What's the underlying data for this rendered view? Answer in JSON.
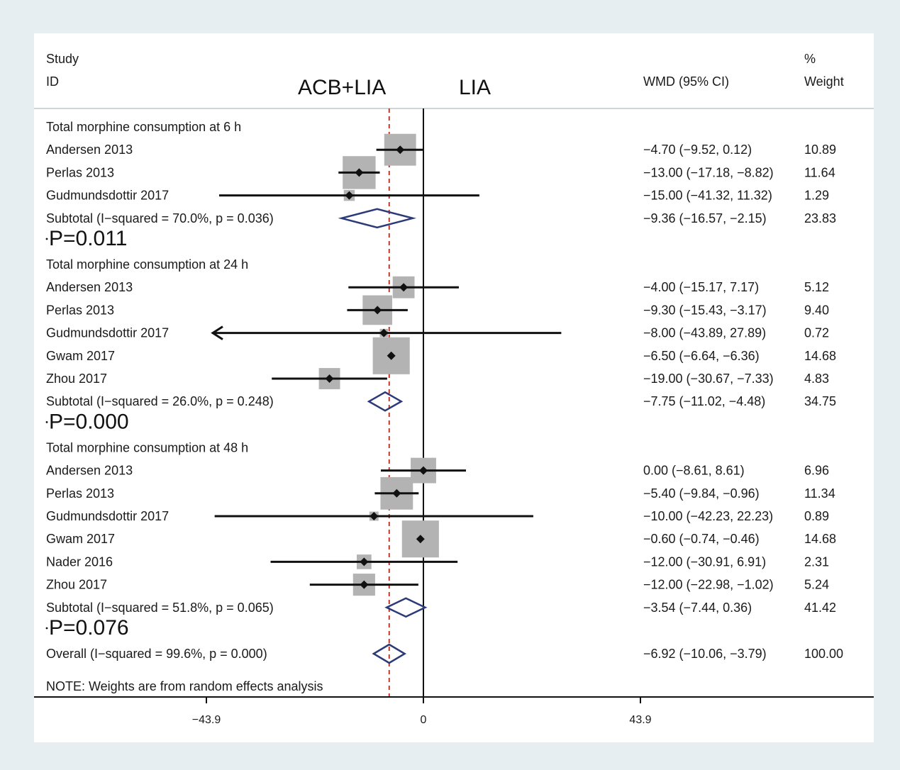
{
  "header": {
    "study_line1": "Study",
    "study_line2": "ID",
    "left_group": "ACB+LIA",
    "right_group": "LIA",
    "effect_label": "WMD (95% CI)",
    "weight_line1": "%",
    "weight_line2": "Weight"
  },
  "p_values": [
    "P=0.011",
    "P=0.000",
    "P=0.076"
  ],
  "note": "NOTE: Weights are from random effects analysis",
  "colors": {
    "background": "#e7eef2",
    "panel": "#ffffff",
    "box": "#b3b3b3",
    "diamond": "#2b3a78",
    "ref_line": "#c0392b",
    "line": "#111111"
  },
  "chart_data": {
    "type": "forest",
    "x_axis": {
      "ticks": [
        -43.9,
        0,
        43.9
      ],
      "tick_labels": [
        "−43.9",
        "0",
        "43.9"
      ],
      "null_value": 0,
      "overall_line": -6.92
    },
    "rows": [
      {
        "kind": "group",
        "label": "Total morphine consumption at 6 h"
      },
      {
        "kind": "study",
        "label": "Andersen 2013",
        "est": -4.7,
        "lo": -9.52,
        "hi": 0.12,
        "ci_text": "−4.70 (−9.52, 0.12)",
        "weight": "10.89"
      },
      {
        "kind": "study",
        "label": "Perlas 2013",
        "est": -13.0,
        "lo": -17.18,
        "hi": -8.82,
        "ci_text": "−13.00 (−17.18, −8.82)",
        "weight": "11.64"
      },
      {
        "kind": "study",
        "label": "Gudmundsdottir 2017",
        "est": -15.0,
        "lo": -41.32,
        "hi": 11.32,
        "ci_text": "−15.00 (−41.32, 11.32)",
        "weight": "1.29"
      },
      {
        "kind": "subtotal",
        "label": "Subtotal  (I−squared = 70.0%, p = 0.036)",
        "est": -9.36,
        "lo": -16.57,
        "hi": -2.15,
        "ci_text": "−9.36 (−16.57, −2.15)",
        "weight": "23.83"
      },
      {
        "kind": "pvalue",
        "index": 0
      },
      {
        "kind": "group",
        "label": "Total morphine consumption at 24 h"
      },
      {
        "kind": "study",
        "label": "Andersen 2013",
        "est": -4.0,
        "lo": -15.17,
        "hi": 7.17,
        "ci_text": "−4.00 (−15.17, 7.17)",
        "weight": "5.12"
      },
      {
        "kind": "study",
        "label": "Perlas 2013",
        "est": -9.3,
        "lo": -15.43,
        "hi": -3.17,
        "ci_text": "−9.30 (−15.43, −3.17)",
        "weight": "9.40"
      },
      {
        "kind": "study",
        "label": "Gudmundsdottir 2017",
        "est": -8.0,
        "lo": -43.89,
        "hi": 27.89,
        "ci_text": "−8.00 (−43.89, 27.89)",
        "weight": "0.72",
        "arrow_left": true
      },
      {
        "kind": "study",
        "label": "Gwam 2017",
        "est": -6.5,
        "lo": -6.64,
        "hi": -6.36,
        "ci_text": "−6.50 (−6.64, −6.36)",
        "weight": "14.68"
      },
      {
        "kind": "study",
        "label": "Zhou 2017",
        "est": -19.0,
        "lo": -30.67,
        "hi": -7.33,
        "ci_text": "−19.00 (−30.67, −7.33)",
        "weight": "4.83"
      },
      {
        "kind": "subtotal",
        "label": "Subtotal  (I−squared = 26.0%, p = 0.248)",
        "est": -7.75,
        "lo": -11.02,
        "hi": -4.48,
        "ci_text": "−7.75 (−11.02, −4.48)",
        "weight": "34.75"
      },
      {
        "kind": "pvalue",
        "index": 1
      },
      {
        "kind": "group",
        "label": "Total morphine consumption at 48 h"
      },
      {
        "kind": "study",
        "label": "Andersen 2013",
        "est": 0.0,
        "lo": -8.61,
        "hi": 8.61,
        "ci_text": "0.00 (−8.61, 8.61)",
        "weight": "6.96"
      },
      {
        "kind": "study",
        "label": "Perlas 2013",
        "est": -5.4,
        "lo": -9.84,
        "hi": -0.96,
        "ci_text": "−5.40 (−9.84, −0.96)",
        "weight": "11.34"
      },
      {
        "kind": "study",
        "label": "Gudmundsdottir 2017",
        "est": -10.0,
        "lo": -42.23,
        "hi": 22.23,
        "ci_text": "−10.00 (−42.23, 22.23)",
        "weight": "0.89"
      },
      {
        "kind": "study",
        "label": "Gwam 2017",
        "est": -0.6,
        "lo": -0.74,
        "hi": -0.46,
        "ci_text": "−0.60 (−0.74, −0.46)",
        "weight": "14.68"
      },
      {
        "kind": "study",
        "label": "Nader 2016",
        "est": -12.0,
        "lo": -30.91,
        "hi": 6.91,
        "ci_text": "−12.00 (−30.91, 6.91)",
        "weight": "2.31"
      },
      {
        "kind": "study",
        "label": "Zhou 2017",
        "est": -12.0,
        "lo": -22.98,
        "hi": -1.02,
        "ci_text": "−12.00 (−22.98, −1.02)",
        "weight": "5.24"
      },
      {
        "kind": "subtotal",
        "label": "Subtotal  (I−squared = 51.8%, p = 0.065)",
        "est": -3.54,
        "lo": -7.44,
        "hi": 0.36,
        "ci_text": "−3.54 (−7.44, 0.36)",
        "weight": "41.42"
      },
      {
        "kind": "pvalue",
        "index": 2
      },
      {
        "kind": "overall",
        "label": "Overall  (I−squared = 99.6%, p = 0.000)",
        "est": -6.92,
        "lo": -10.06,
        "hi": -3.79,
        "ci_text": "−6.92 (−10.06, −3.79)",
        "weight": "100.00"
      }
    ]
  }
}
